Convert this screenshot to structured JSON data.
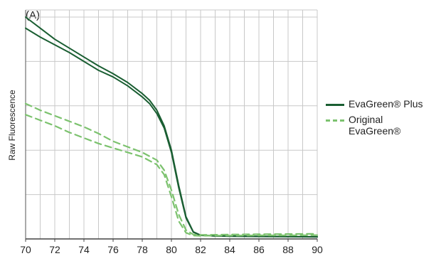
{
  "chart_data": {
    "type": "line",
    "panel_label": "(A)",
    "xlabel": "",
    "ylabel": "Raw Fluorescence",
    "xlim": [
      70,
      90
    ],
    "ylim": [
      0,
      100
    ],
    "x_ticks": [
      70,
      72,
      74,
      76,
      78,
      80,
      82,
      84,
      86,
      88,
      90
    ],
    "x_tick_labels": [
      "70",
      "72",
      "74",
      "76",
      "78",
      "80",
      "82",
      "84",
      "86",
      "88",
      "90"
    ],
    "y_grid_values": [
      0,
      20,
      40,
      60,
      80,
      100
    ],
    "x_grid_step": 1,
    "grid": true,
    "legend_position": "right",
    "legend": [
      "EvaGreen® Plus",
      "Original EvaGreen®"
    ],
    "series": [
      {
        "name": "EvaGreen® Plus",
        "color": "#1a5e32",
        "style": "solid",
        "replicates": [
          {
            "x": [
              70,
              71,
              72,
              73,
              74,
              75,
              76,
              77,
              78,
              78.5,
              79,
              79.5,
              80,
              80.5,
              81,
              81.5,
              82,
              83,
              84,
              86,
              88,
              90
            ],
            "y": [
              100,
              95,
              90,
              86,
              82,
              78,
              74.5,
              70.5,
              65.5,
              62.5,
              58,
              51,
              40,
              24,
              10,
              3.2,
              1.7,
              1.4,
              1.3,
              1.2,
              1.1,
              1.0
            ]
          },
          {
            "x": [
              70,
              71,
              72,
              73,
              74,
              75,
              76,
              77,
              78,
              78.5,
              79,
              79.5,
              80,
              80.5,
              81,
              81.5,
              82,
              83,
              84,
              86,
              88,
              90
            ],
            "y": [
              95,
              91,
              87.5,
              84,
              80,
              76,
              73,
              69,
              64,
              61,
              56.5,
              50,
              39,
              23,
              9.5,
              3,
              1.6,
              1.3,
              1.2,
              1.1,
              1.0,
              0.9
            ]
          }
        ]
      },
      {
        "name": "Original EvaGreen®",
        "color": "#7cc26e",
        "style": "dashed",
        "replicates": [
          {
            "x": [
              70,
              71,
              72,
              73,
              74,
              75,
              76,
              77,
              78,
              79,
              79.5,
              80,
              80.5,
              81,
              81.5,
              82,
              83,
              84,
              86,
              88,
              90
            ],
            "y": [
              61,
              58,
              55.5,
              53,
              50.5,
              47.5,
              44,
              41.5,
              39,
              35.5,
              31,
              22,
              11,
              4,
              2,
              1.8,
              1.9,
              2.0,
              2.1,
              2.2,
              2.3
            ]
          },
          {
            "x": [
              70,
              71,
              72,
              73,
              74,
              75,
              76,
              77,
              78,
              79,
              79.5,
              80,
              80.5,
              81,
              81.5,
              82,
              83,
              84,
              86,
              88,
              90
            ],
            "y": [
              56,
              53.5,
              51,
              48,
              45.5,
              43,
              41,
              39,
              37,
              33.5,
              29,
              19,
              8,
              2.8,
              1.5,
              1.4,
              1.5,
              1.5,
              1.6,
              1.6,
              1.7
            ]
          }
        ]
      }
    ]
  }
}
